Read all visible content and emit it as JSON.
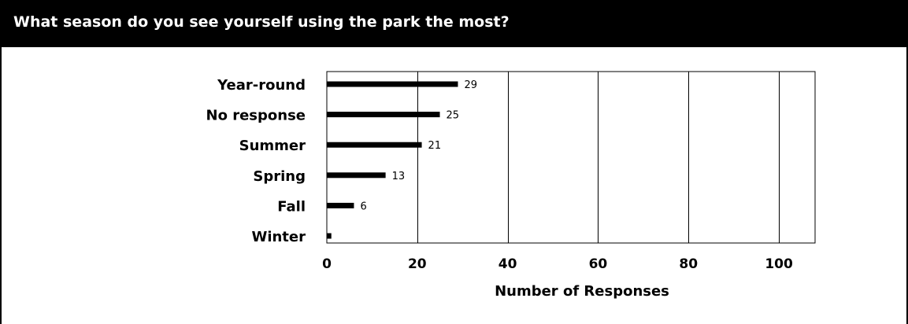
{
  "title": "What season do you see yourself using the park the most?",
  "colors": {
    "header_bg": "#000000",
    "header_text": "#ffffff",
    "bar": "#000000",
    "grid": "#000000"
  },
  "chart_data": {
    "type": "bar",
    "orientation": "horizontal",
    "categories": [
      "Year-round",
      "No response",
      "Summer",
      "Spring",
      "Fall",
      "Winter"
    ],
    "values": [
      29,
      25,
      21,
      13,
      6,
      1
    ],
    "data_labels": [
      "29",
      "25",
      "21",
      "13",
      "6",
      ""
    ],
    "xlabel": "Number of Responses",
    "ylabel": "",
    "xlim": [
      0,
      108
    ],
    "xticks": [
      0,
      20,
      40,
      60,
      80,
      100
    ],
    "grid": "vertical"
  }
}
